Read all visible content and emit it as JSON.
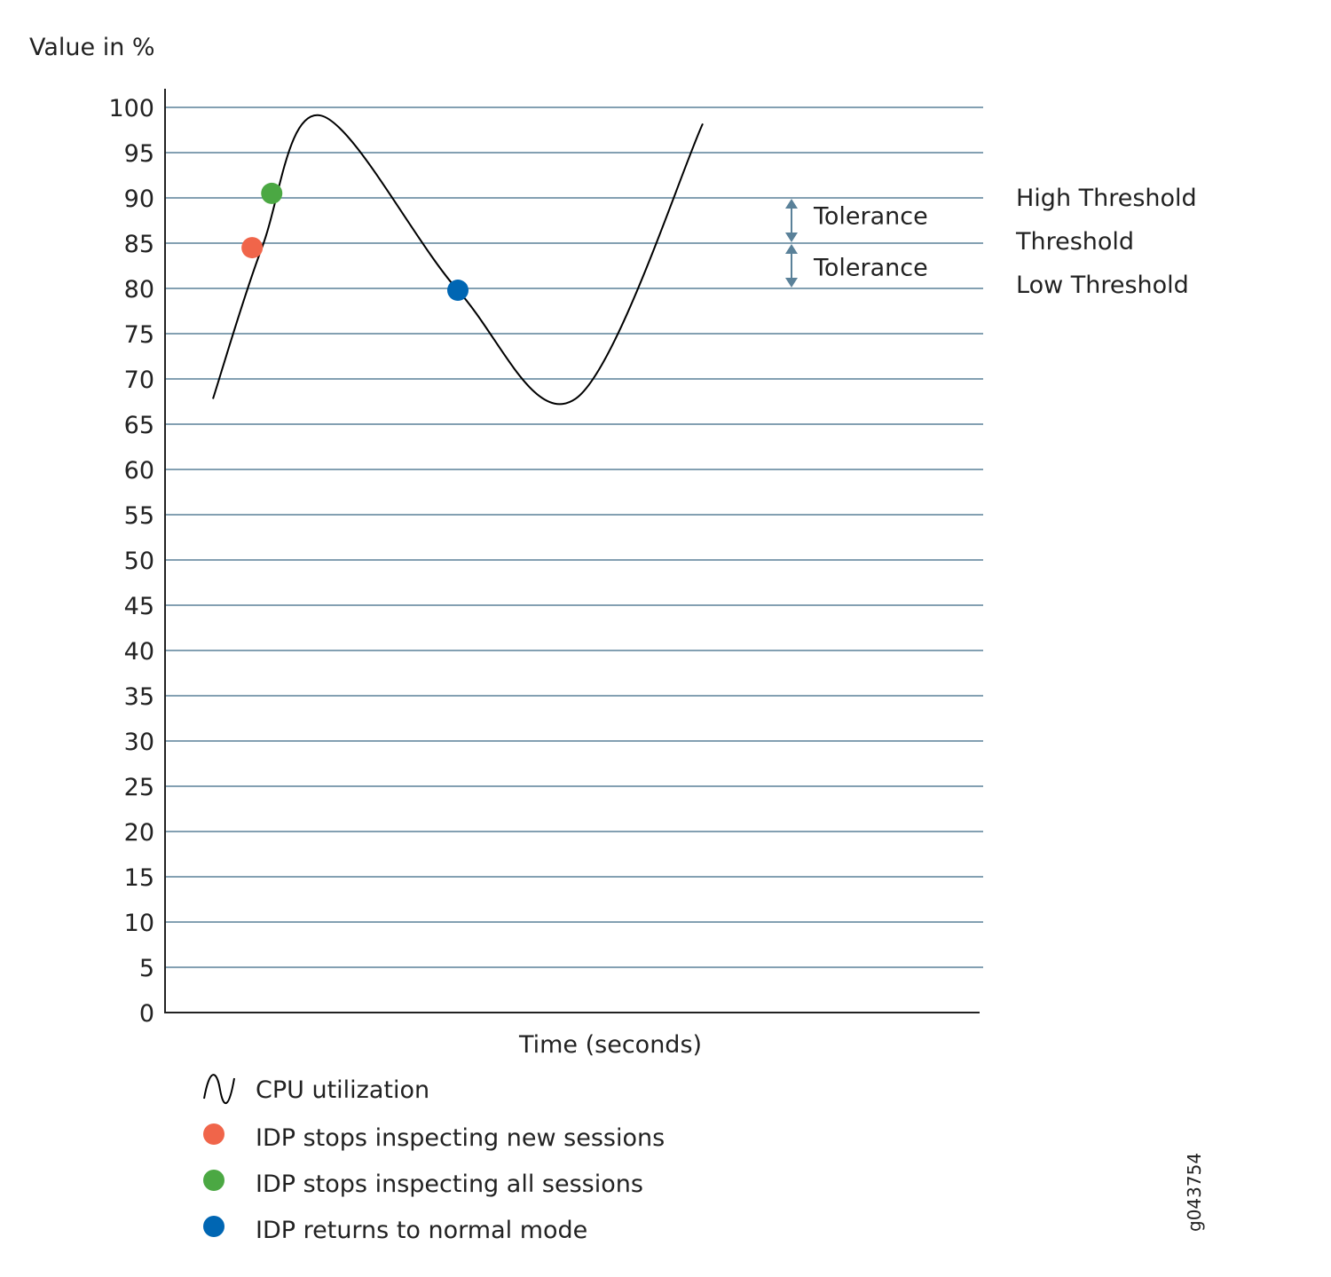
{
  "chart_data": {
    "type": "line",
    "ylabel": "Value in %",
    "xlabel": "Time (seconds)",
    "ylim": [
      0,
      100
    ],
    "y_ticks": [
      "0",
      "5",
      "10",
      "15",
      "20",
      "25",
      "30",
      "35",
      "40",
      "45",
      "50",
      "55",
      "60",
      "65",
      "70",
      "75",
      "80",
      "85",
      "90",
      "95",
      "100"
    ],
    "grid": true,
    "series": [
      {
        "name": "CPU utilization",
        "color": "#000000",
        "points": [
          {
            "t": 0.0,
            "y": 67.8
          },
          {
            "t": 0.1,
            "y": 84.5
          },
          {
            "t": 0.22,
            "y": 99.1
          },
          {
            "t": 0.5,
            "y": 79.8
          },
          {
            "t": 0.74,
            "y": 67.8
          },
          {
            "t": 1.0,
            "y": 98.2
          }
        ]
      }
    ],
    "markers": [
      {
        "label": "IDP stops inspecting new sessions",
        "color": "#f0654a",
        "y": 84.5,
        "t": 0.08
      },
      {
        "label": "IDP stops inspecting all sessions",
        "color": "#4ba843",
        "y": 90.5,
        "t": 0.12
      },
      {
        "label": "IDP returns to normal mode",
        "color": "#0066b3",
        "y": 79.8,
        "t": 0.5
      }
    ],
    "thresholds": [
      {
        "label": "High Threshold",
        "y": 90
      },
      {
        "label": "Threshold",
        "y": 85
      },
      {
        "label": "Low Threshold",
        "y": 80
      }
    ],
    "tolerances": [
      {
        "label": "Tolerance",
        "from": 85,
        "to": 90
      },
      {
        "label": "Tolerance",
        "from": 80,
        "to": 85
      }
    ],
    "legend": {
      "placement": "bottom-left",
      "entries": [
        {
          "label": "CPU utilization",
          "kind": "line",
          "icon": "sine-wave-icon"
        },
        {
          "label": "IDP stops inspecting new sessions",
          "kind": "dot",
          "color": "#f0654a"
        },
        {
          "label": "IDP stops inspecting all sessions",
          "kind": "dot",
          "color": "#4ba843"
        },
        {
          "label": "IDP returns to normal mode",
          "kind": "dot",
          "color": "#0066b3"
        }
      ]
    },
    "figure_id": "g043754",
    "colors": {
      "grid": "#5a8199",
      "axis": "#222222",
      "tolerance_arrow": "#5a8199"
    }
  }
}
